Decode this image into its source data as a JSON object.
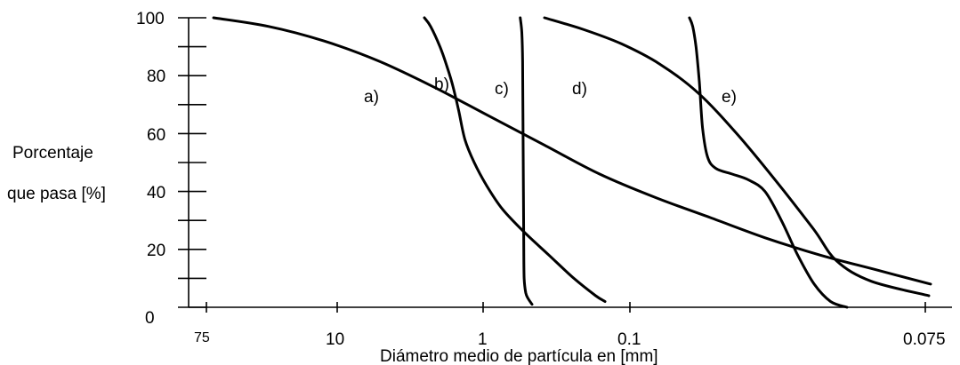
{
  "chart_data": {
    "type": "line",
    "title": "",
    "ylabel_line1": "Porcentaje",
    "ylabel_line2": "que pasa [%]",
    "xlabel": "Diámetro medio de partícula en [mm]",
    "y_ticks": [
      "100",
      "80",
      "60",
      "40",
      "20",
      "0"
    ],
    "x_ticks": [
      "75",
      "10",
      "1",
      "0.1",
      "0.075"
    ],
    "ylim": [
      0,
      100
    ],
    "x_axis_note": "particle diameter decreasing left to right (log scale)",
    "series": [
      {
        "name": "a)",
        "points": [
          [
            0.42,
            100
          ],
          [
            0.44,
            97
          ],
          [
            0.47,
            90
          ],
          [
            0.49,
            84
          ],
          [
            0.51,
            77
          ],
          [
            0.53,
            68
          ],
          [
            0.55,
            58
          ],
          [
            0.58,
            50
          ],
          [
            0.62,
            42
          ],
          [
            0.67,
            34
          ],
          [
            0.74,
            26
          ],
          [
            0.82,
            18
          ],
          [
            0.9,
            10
          ],
          [
            0.97,
            4
          ],
          [
            1.0,
            2
          ]
        ]
      },
      {
        "name": "b)",
        "points": [
          [
            0.0,
            100
          ],
          [
            0.1,
            97
          ],
          [
            0.2,
            92
          ],
          [
            0.3,
            85
          ],
          [
            0.4,
            76
          ],
          [
            0.5,
            66
          ],
          [
            0.6,
            56
          ],
          [
            0.7,
            46
          ],
          [
            0.8,
            38
          ],
          [
            0.9,
            31
          ],
          [
            1.0,
            24
          ],
          [
            1.1,
            18
          ],
          [
            1.2,
            13
          ],
          [
            1.3,
            8
          ]
        ]
      },
      {
        "name": "c)",
        "points": [
          [
            0.9,
            100
          ],
          [
            0.92,
            95
          ],
          [
            0.93,
            85
          ],
          [
            0.935,
            65
          ],
          [
            0.94,
            40
          ],
          [
            0.945,
            20
          ],
          [
            0.95,
            10
          ],
          [
            0.97,
            5
          ],
          [
            1.0,
            3
          ],
          [
            1.05,
            1
          ]
        ]
      },
      {
        "name": "d)",
        "points": [
          [
            0.52,
            100
          ],
          [
            0.53,
            97
          ],
          [
            0.54,
            90
          ],
          [
            0.55,
            78
          ],
          [
            0.56,
            62
          ],
          [
            0.575,
            52
          ],
          [
            0.6,
            48
          ],
          [
            0.65,
            46
          ],
          [
            0.7,
            44
          ],
          [
            0.75,
            40
          ],
          [
            0.8,
            30
          ],
          [
            0.85,
            18
          ],
          [
            0.9,
            8
          ],
          [
            0.95,
            2
          ],
          [
            1.0,
            0
          ]
        ]
      },
      {
        "name": "e)",
        "points": [
          [
            0.0,
            100
          ],
          [
            0.1,
            96
          ],
          [
            0.2,
            91
          ],
          [
            0.3,
            84
          ],
          [
            0.4,
            74
          ],
          [
            0.5,
            60
          ],
          [
            0.6,
            44
          ],
          [
            0.7,
            27
          ],
          [
            0.76,
            16
          ],
          [
            0.85,
            9
          ],
          [
            1.0,
            4
          ]
        ]
      }
    ]
  }
}
